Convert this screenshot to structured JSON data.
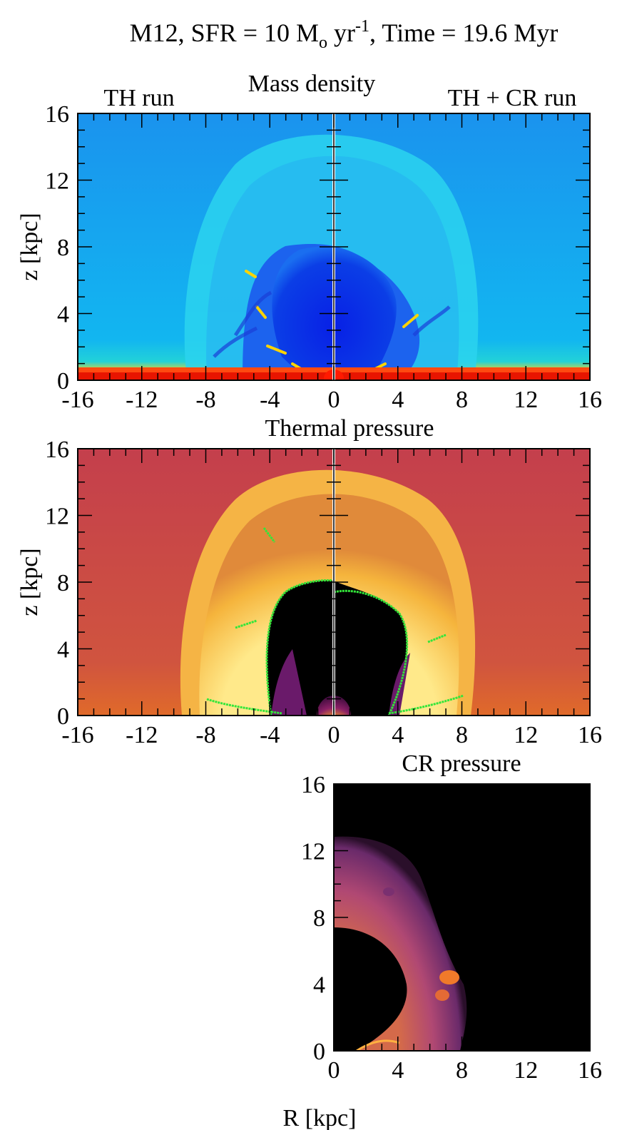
{
  "figure": {
    "title_prefix": "M12, SFR = 10 M",
    "title_sub": "o",
    "title_mid": " yr",
    "title_sup": "-1",
    "title_suffix": ", Time = 19.6 Myr",
    "left_label": "TH run",
    "right_label": "TH + CR run"
  },
  "chart_data": [
    {
      "type": "heatmap",
      "title": "Mass density",
      "quantity": "mass density",
      "panels": [
        "TH run",
        "TH + CR run"
      ],
      "xlabel": "",
      "ylabel": "z [kpc]",
      "xlim": [
        -16,
        16
      ],
      "ylim": [
        0,
        16
      ],
      "xticks": [
        "-16",
        "-12",
        "-8",
        "-4",
        "0",
        "4",
        "8",
        "12",
        "16"
      ],
      "yticks": [
        "0",
        "4",
        "8",
        "12",
        "16"
      ],
      "colors": {
        "background": "#1a9cf2",
        "shell": "#2ad6f0",
        "cavity": "#0a2fe0",
        "disk": "#ff2a00",
        "filament": "#ffd400"
      },
      "features": {
        "cavity_top_kpc_left": 8,
        "cavity_top_kpc_right": 7.5,
        "shell_top_kpc": 14.5
      }
    },
    {
      "type": "heatmap",
      "title": "Thermal pressure",
      "quantity": "thermal pressure",
      "panels": [
        "TH run",
        "TH + CR run"
      ],
      "xlabel": "",
      "ylabel": "z [kpc]",
      "xlim": [
        -16,
        16
      ],
      "ylim": [
        0,
        16
      ],
      "xticks": [
        "-16",
        "-12",
        "-8",
        "-4",
        "0",
        "4",
        "8",
        "12",
        "16"
      ],
      "yticks": [
        "0",
        "4",
        "8",
        "12",
        "16"
      ],
      "colors": {
        "background": "#c94a47",
        "shell": "#f7c34a",
        "cavity": "#000000",
        "contour": "#33e63a"
      },
      "features": {
        "cavity_top_kpc": 8,
        "shell_top_kpc": 14.5
      }
    },
    {
      "type": "heatmap",
      "title": "CR pressure",
      "quantity": "CR pressure",
      "panels": [
        "TH + CR run"
      ],
      "xlabel": "R [kpc]",
      "ylabel": "",
      "xlim": [
        0,
        16
      ],
      "ylim": [
        0,
        16
      ],
      "xticks": [
        "0",
        "4",
        "8",
        "12",
        "16"
      ],
      "yticks": [
        "0",
        "4",
        "8",
        "12",
        "16"
      ],
      "colors": {
        "background": "#000000",
        "shell": "#a83f6a",
        "hot": "#f07a2a"
      },
      "features": {
        "cavity_top_kpc": 7.5,
        "cr_front_top_kpc": 12.7
      }
    }
  ]
}
